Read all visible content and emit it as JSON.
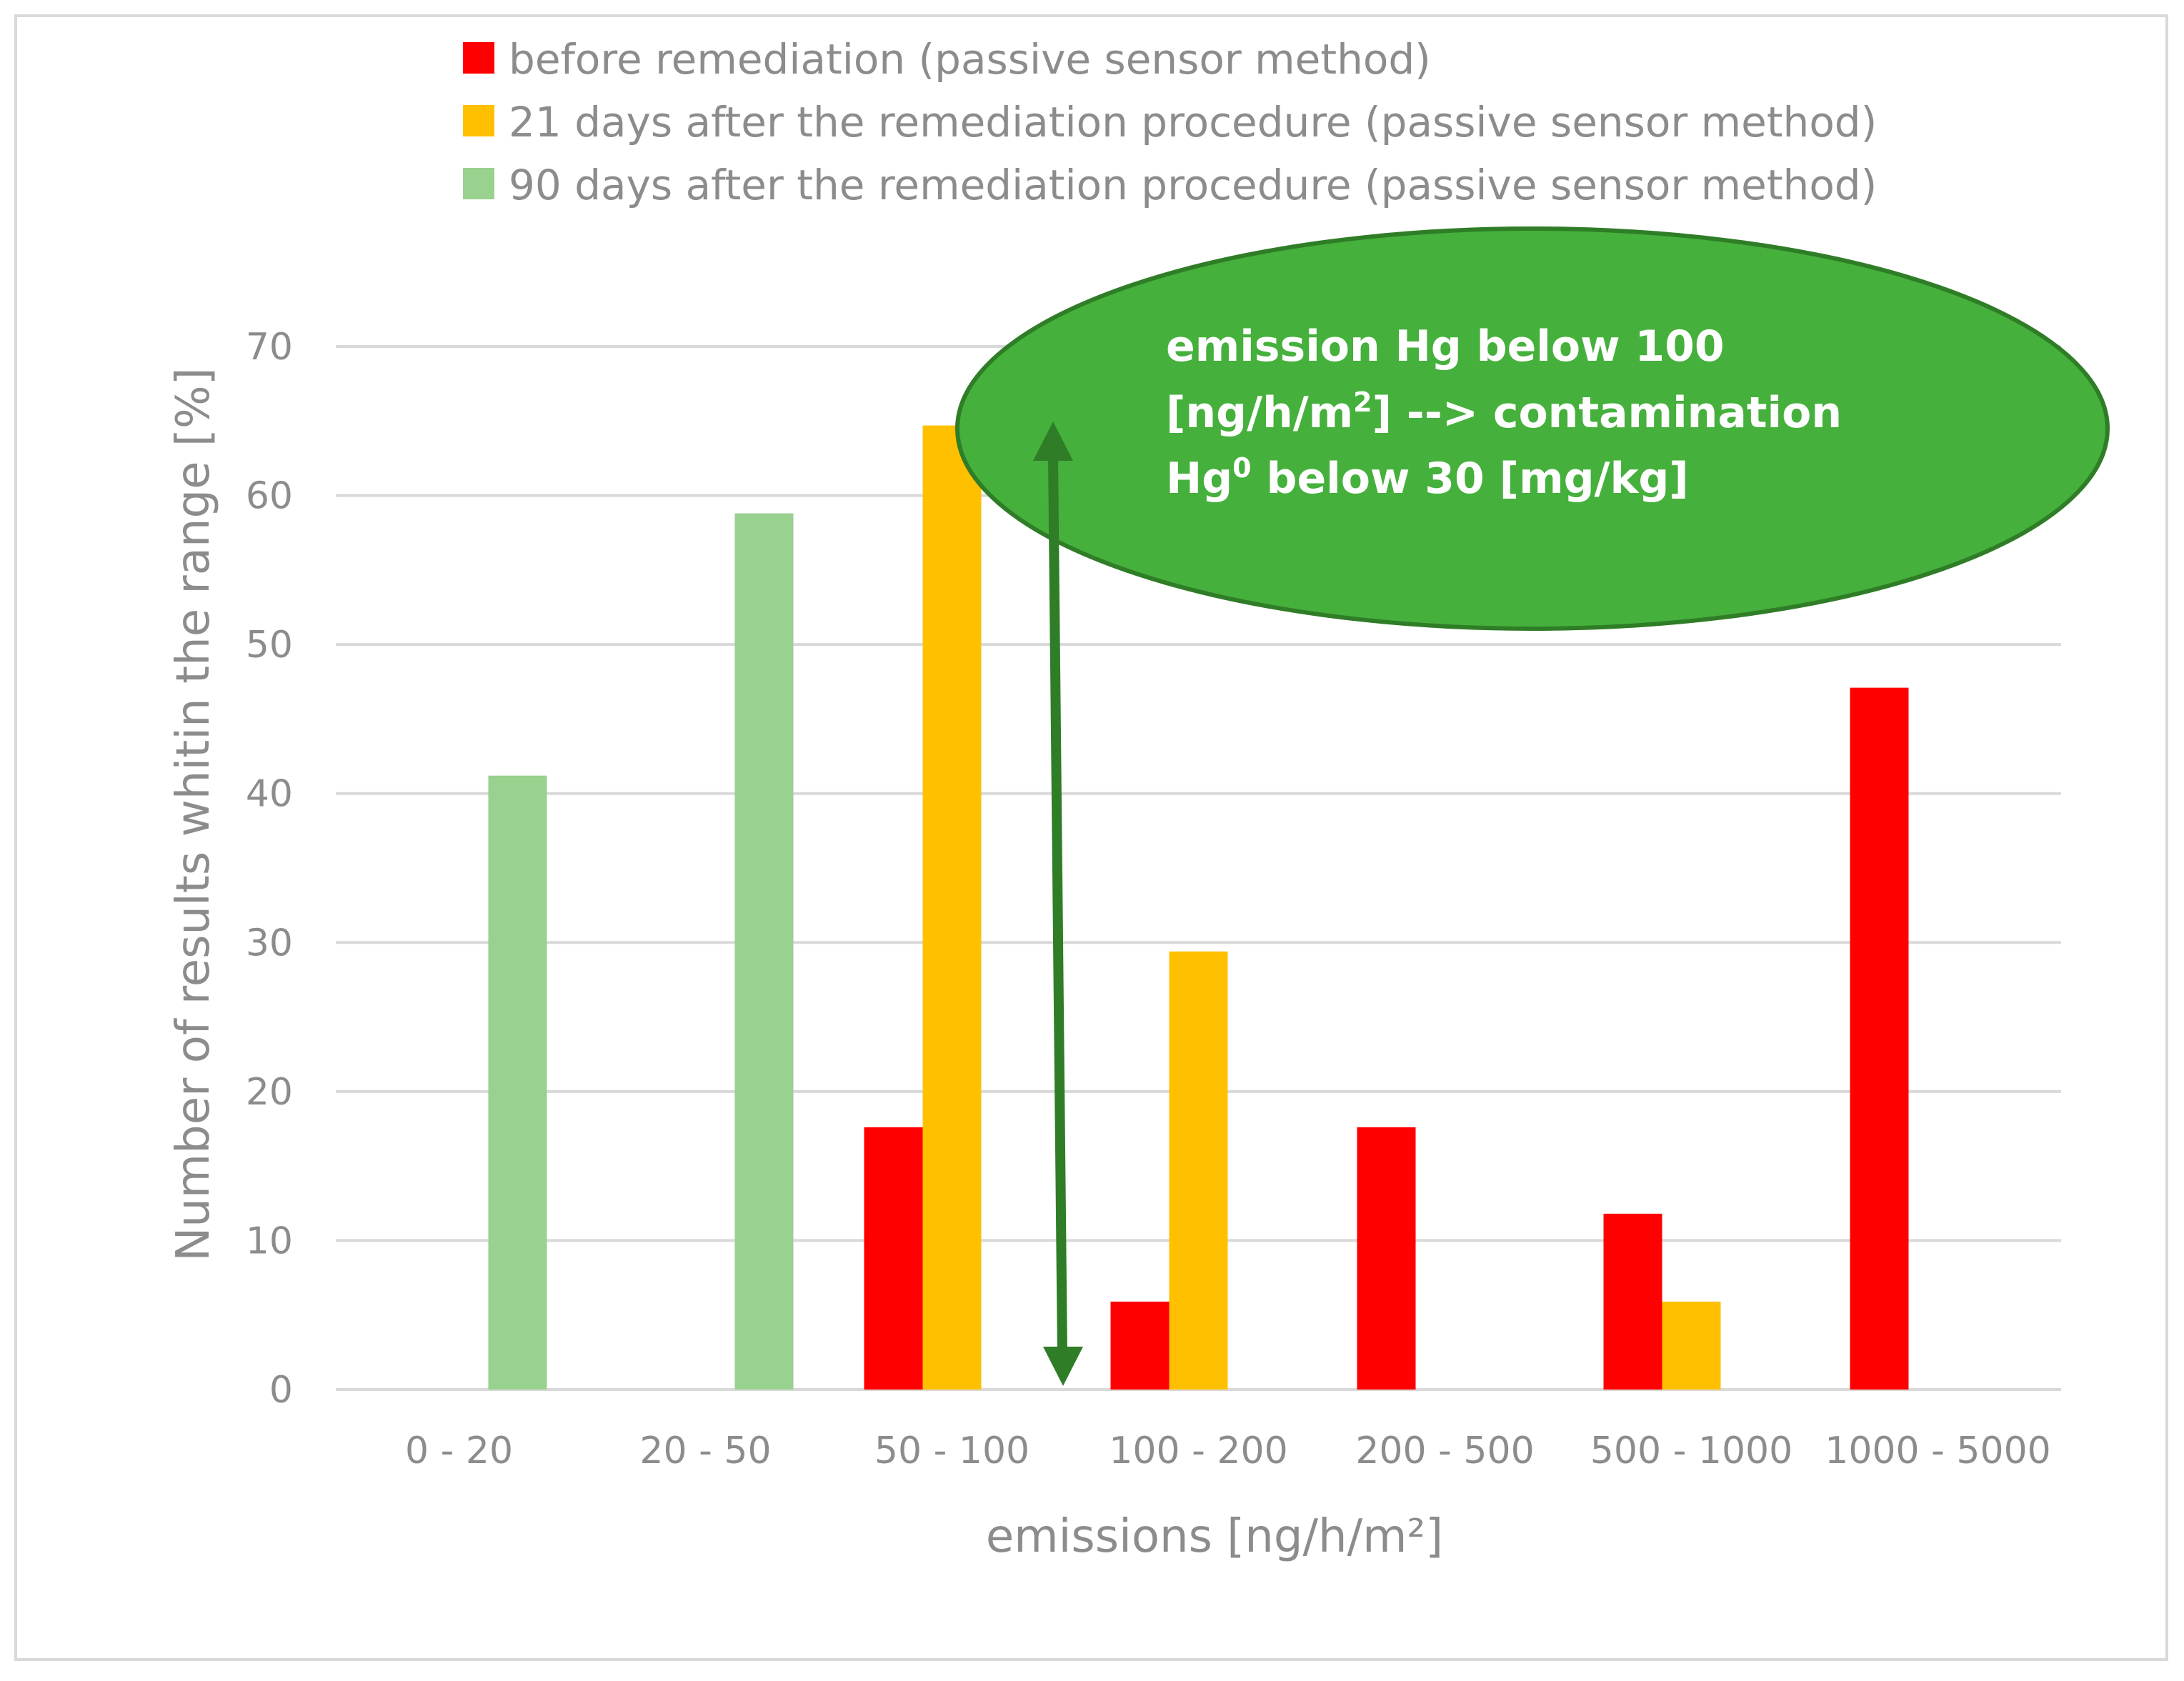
{
  "chart_data": {
    "type": "bar",
    "categories": [
      "0 - 20",
      "20 - 50",
      "50 - 100",
      "100 - 200",
      "200 - 500",
      "500 - 1000",
      "1000 - 5000"
    ],
    "series": [
      {
        "name": "before remediation (passive sensor method)",
        "color": "#ff0000",
        "values": [
          0,
          0,
          17.6,
          5.9,
          17.6,
          11.8,
          47.1
        ]
      },
      {
        "name": "21 days after the remediation procedure (passive sensor method)",
        "color": "#ffc000",
        "values": [
          0,
          0,
          64.7,
          29.4,
          0,
          5.9,
          0
        ]
      },
      {
        "name": "90 days after the remediation procedure (passive sensor method)",
        "color": "#99d18f",
        "values": [
          41.2,
          58.8,
          0,
          0,
          0,
          0,
          0
        ]
      }
    ],
    "xlabel": "emissions [ng/h/m²]",
    "ylabel": "Number of results whitin the range [%]",
    "ylim": [
      0,
      70
    ],
    "yticks": [
      0,
      10,
      20,
      30,
      40,
      50,
      60,
      70
    ],
    "grid": true,
    "legend_position": "top",
    "annotation": {
      "line1": "emission Hg below 100",
      "line2_a": "[ng/h/m",
      "line2_sup": "2",
      "line2_b": "] -->  contamination",
      "line3_a": "Hg",
      "line3_sup": "0",
      "line3_b": " below 30 [mg/kg]",
      "fill": "#45b03c",
      "arrow_color": "#2f7d27"
    }
  }
}
